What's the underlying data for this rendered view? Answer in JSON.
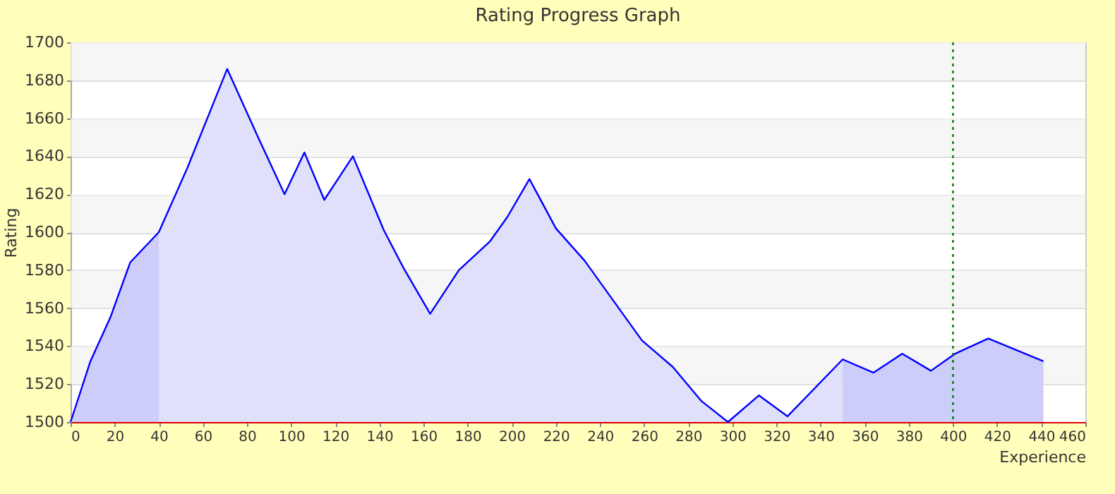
{
  "chart_data": {
    "type": "line",
    "title": "Rating Progress Graph",
    "xlabel": "Experience",
    "ylabel": "Rating",
    "xlim": [
      0,
      460
    ],
    "xticks": [
      0,
      20,
      40,
      60,
      80,
      100,
      120,
      140,
      160,
      180,
      200,
      220,
      240,
      260,
      280,
      300,
      320,
      340,
      360,
      380,
      400,
      420,
      440,
      460
    ],
    "ylim": [
      1500,
      1700
    ],
    "yticks": [
      1500,
      1520,
      1540,
      1560,
      1580,
      1600,
      1620,
      1640,
      1660,
      1680,
      1700
    ],
    "grid": "y",
    "marker": "none",
    "line_style": "solid",
    "series": [
      {
        "type": "area",
        "color": "#cdcdfa",
        "x": [
          0,
          9,
          18,
          27,
          40
        ],
        "values": [
          1500,
          1532,
          1555,
          1584,
          1600
        ]
      },
      {
        "type": "area",
        "color": "#e0e0fa",
        "x": [
          40,
          53,
          71,
          85,
          97,
          106,
          115,
          128,
          142,
          151,
          163,
          176,
          190,
          198,
          208,
          220,
          233,
          259,
          273,
          286,
          298,
          312,
          325,
          350
        ],
        "values": [
          1600,
          1634,
          1686,
          1650,
          1620,
          1642,
          1617,
          1640,
          1601,
          1581,
          1557,
          1580,
          1595,
          1608,
          1628,
          1602,
          1585,
          1543,
          1529,
          1511,
          1500,
          1514,
          1503,
          1533
        ]
      },
      {
        "type": "area",
        "color": "#cdcdfa",
        "x": [
          350,
          364,
          377,
          390,
          401,
          416,
          441
        ],
        "values": [
          1533,
          1526,
          1536,
          1527,
          1536,
          1544,
          1532
        ]
      },
      {
        "color": "#0000ff",
        "x": [
          0,
          9,
          18,
          27,
          40,
          53,
          71,
          85,
          97,
          106,
          115,
          128,
          142,
          151,
          163,
          176,
          190,
          198,
          208,
          220,
          233,
          259,
          273,
          286,
          298,
          312,
          325,
          350,
          364,
          377,
          390,
          401,
          416,
          441
        ],
        "values": [
          1500,
          1532,
          1555,
          1584,
          1600,
          1634,
          1686,
          1650,
          1620,
          1642,
          1617,
          1640,
          1601,
          1581,
          1557,
          1580,
          1595,
          1608,
          1628,
          1602,
          1585,
          1543,
          1529,
          1511,
          1500,
          1514,
          1503,
          1533,
          1526,
          1536,
          1527,
          1536,
          1544,
          1532
        ]
      }
    ],
    "bands": [
      {
        "axis": "y",
        "from": 1520,
        "to": 1540,
        "color": "#f3f3f3"
      },
      {
        "axis": "y",
        "from": 1560,
        "to": 1580,
        "color": "#f3f3f3"
      },
      {
        "axis": "y",
        "from": 1600,
        "to": 1620,
        "color": "#f3f3f3"
      },
      {
        "axis": "y",
        "from": 1640,
        "to": 1660,
        "color": "#f3f3f3"
      },
      {
        "axis": "y",
        "from": 1680,
        "to": 1700,
        "color": "#f3f3f3"
      }
    ],
    "ref_lines": [
      {
        "axis": "x",
        "value": 400,
        "color": "#007700",
        "line_style": "dotted"
      }
    ]
  }
}
